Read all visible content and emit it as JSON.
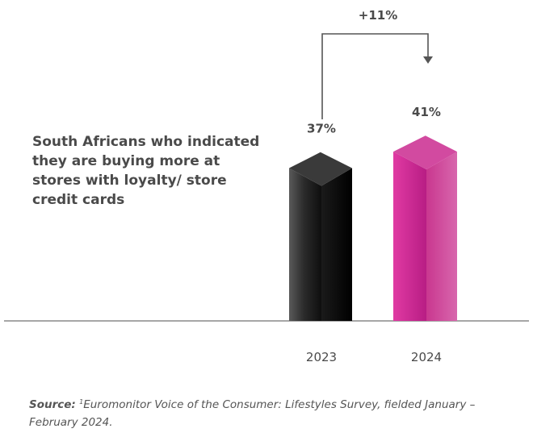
{
  "chart_data": {
    "type": "bar",
    "style": "3d-column",
    "description": "South Africans who indicated\nthey are buying more at\nstores with loyalty/ store\ncredit cards",
    "categories": [
      "2023",
      "2024"
    ],
    "values": [
      37,
      41
    ],
    "value_labels": [
      "37%",
      "41%"
    ],
    "change_annotation": "+11%",
    "unit": "%",
    "bar_colors": [
      "#1a1a1a",
      "#c8278f"
    ],
    "axis_line_color": "#8a8a8a",
    "grid": false,
    "legend": "none"
  },
  "source": {
    "label": "Source:",
    "footnote_mark": "1",
    "text": "Euromonitor Voice of the Consumer: Lifestyles Survey, fielded January – February 2024."
  }
}
